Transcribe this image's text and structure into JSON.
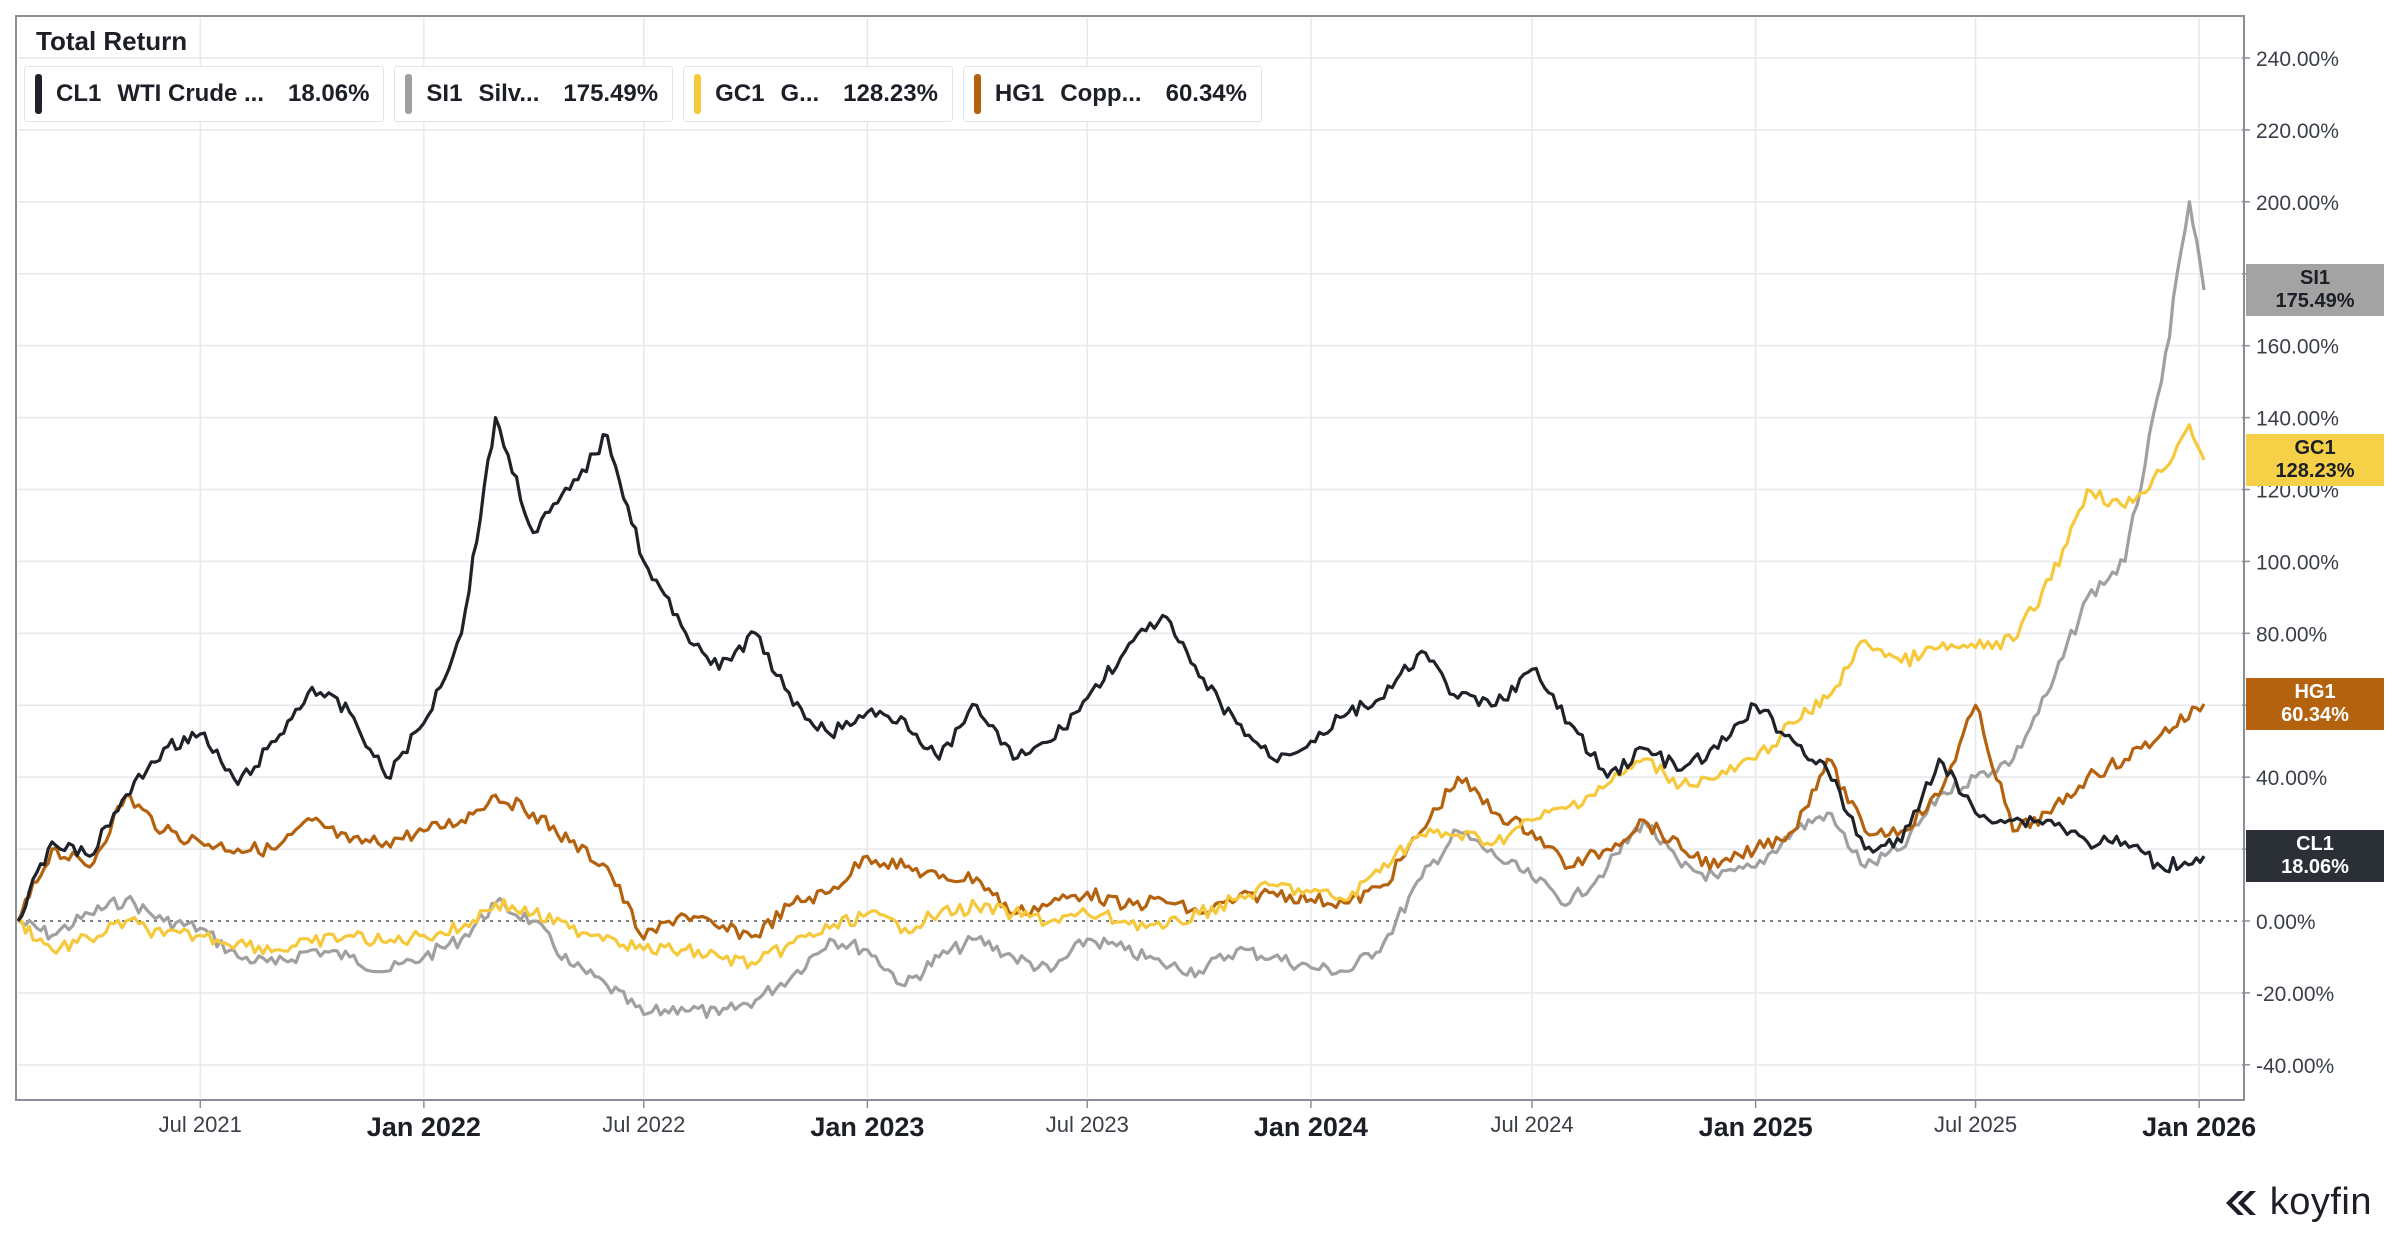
{
  "chart_data": {
    "type": "line",
    "title": "Total Return",
    "x_range": [
      "2021-02-01",
      "2026-01-05"
    ],
    "ylim": [
      -50,
      250
    ],
    "y_ticks": [
      -40,
      -20,
      0,
      20,
      40,
      60,
      80,
      100,
      120,
      140,
      160,
      180,
      200,
      220,
      240
    ],
    "y_tick_labels": [
      "-40.00%",
      "-20.00%",
      "0.00%",
      "20.00%",
      "40.00%",
      "60.00%",
      "80.00%",
      "100.00%",
      "120.00%",
      "140.00%",
      "160.00%",
      "180.00%",
      "200.00%",
      "220.00%",
      "240.00%"
    ],
    "x_ticks": [
      {
        "date": "2021-07-01",
        "label": "Jul 2021",
        "major": false
      },
      {
        "date": "2022-01-01",
        "label": "Jan 2022",
        "major": true
      },
      {
        "date": "2022-07-01",
        "label": "Jul 2022",
        "major": false
      },
      {
        "date": "2023-01-01",
        "label": "Jan 2023",
        "major": true
      },
      {
        "date": "2023-07-01",
        "label": "Jul 2023",
        "major": false
      },
      {
        "date": "2024-01-01",
        "label": "Jan 2024",
        "major": true
      },
      {
        "date": "2024-07-01",
        "label": "Jul 2024",
        "major": false
      },
      {
        "date": "2025-01-01",
        "label": "Jan 2025",
        "major": true
      },
      {
        "date": "2025-07-01",
        "label": "Jul 2025",
        "major": false
      },
      {
        "date": "2026-01-01",
        "label": "Jan 2026",
        "major": true
      }
    ],
    "grid": true,
    "legend_position": "top-left",
    "zero_line": "dotted",
    "series": [
      {
        "ticker": "CL1",
        "name": "WTI Crude ...",
        "last_value": "18.06%",
        "color": "#1f2329",
        "points": [
          [
            "2021-02-01",
            0
          ],
          [
            "2021-03-01",
            22
          ],
          [
            "2021-04-01",
            18
          ],
          [
            "2021-05-01",
            35
          ],
          [
            "2021-06-01",
            48
          ],
          [
            "2021-07-01",
            52
          ],
          [
            "2021-08-01",
            38
          ],
          [
            "2021-09-01",
            50
          ],
          [
            "2021-10-01",
            65
          ],
          [
            "2021-11-01",
            58
          ],
          [
            "2021-12-01",
            40
          ],
          [
            "2022-01-01",
            55
          ],
          [
            "2022-02-01",
            80
          ],
          [
            "2022-03-01",
            140
          ],
          [
            "2022-04-01",
            108
          ],
          [
            "2022-05-01",
            120
          ],
          [
            "2022-06-01",
            135
          ],
          [
            "2022-07-01",
            100
          ],
          [
            "2022-08-01",
            82
          ],
          [
            "2022-09-01",
            70
          ],
          [
            "2022-10-01",
            80
          ],
          [
            "2022-11-01",
            60
          ],
          [
            "2022-12-01",
            52
          ],
          [
            "2023-01-01",
            58
          ],
          [
            "2023-02-01",
            56
          ],
          [
            "2023-03-01",
            45
          ],
          [
            "2023-04-01",
            60
          ],
          [
            "2023-05-01",
            45
          ],
          [
            "2023-06-01",
            50
          ],
          [
            "2023-07-01",
            62
          ],
          [
            "2023-08-01",
            75
          ],
          [
            "2023-09-01",
            85
          ],
          [
            "2023-10-01",
            68
          ],
          [
            "2023-11-01",
            55
          ],
          [
            "2023-12-01",
            45
          ],
          [
            "2024-01-01",
            50
          ],
          [
            "2024-02-01",
            58
          ],
          [
            "2024-03-01",
            62
          ],
          [
            "2024-04-01",
            75
          ],
          [
            "2024-05-01",
            62
          ],
          [
            "2024-06-01",
            60
          ],
          [
            "2024-07-01",
            70
          ],
          [
            "2024-08-01",
            55
          ],
          [
            "2024-09-01",
            40
          ],
          [
            "2024-10-01",
            48
          ],
          [
            "2024-11-01",
            42
          ],
          [
            "2024-12-01",
            48
          ],
          [
            "2025-01-01",
            60
          ],
          [
            "2025-02-01",
            50
          ],
          [
            "2025-03-01",
            42
          ],
          [
            "2025-04-01",
            20
          ],
          [
            "2025-05-01",
            22
          ],
          [
            "2025-06-01",
            45
          ],
          [
            "2025-07-01",
            30
          ],
          [
            "2025-08-01",
            28
          ],
          [
            "2025-09-01",
            28
          ],
          [
            "2025-10-01",
            22
          ],
          [
            "2025-11-01",
            22
          ],
          [
            "2025-12-01",
            15
          ],
          [
            "2026-01-05",
            18.06
          ]
        ]
      },
      {
        "ticker": "SI1",
        "name": "Silv...",
        "last_value": "175.49%",
        "color": "#a0a0a0",
        "points": [
          [
            "2021-02-01",
            0
          ],
          [
            "2021-03-01",
            -4
          ],
          [
            "2021-04-01",
            2
          ],
          [
            "2021-05-01",
            6
          ],
          [
            "2021-06-01",
            0
          ],
          [
            "2021-07-01",
            -2
          ],
          [
            "2021-08-01",
            -10
          ],
          [
            "2021-09-01",
            -12
          ],
          [
            "2021-10-01",
            -8
          ],
          [
            "2021-11-01",
            -10
          ],
          [
            "2021-12-01",
            -14
          ],
          [
            "2022-01-01",
            -10
          ],
          [
            "2022-02-01",
            -5
          ],
          [
            "2022-03-01",
            5
          ],
          [
            "2022-04-01",
            0
          ],
          [
            "2022-05-01",
            -12
          ],
          [
            "2022-06-01",
            -18
          ],
          [
            "2022-07-01",
            -26
          ],
          [
            "2022-08-01",
            -24
          ],
          [
            "2022-09-01",
            -26
          ],
          [
            "2022-10-01",
            -22
          ],
          [
            "2022-11-01",
            -15
          ],
          [
            "2022-12-01",
            -5
          ],
          [
            "2023-01-01",
            -8
          ],
          [
            "2023-02-01",
            -18
          ],
          [
            "2023-03-01",
            -10
          ],
          [
            "2023-04-01",
            -5
          ],
          [
            "2023-05-01",
            -10
          ],
          [
            "2023-06-01",
            -14
          ],
          [
            "2023-07-01",
            -5
          ],
          [
            "2023-08-01",
            -8
          ],
          [
            "2023-09-01",
            -12
          ],
          [
            "2023-10-01",
            -14
          ],
          [
            "2023-11-01",
            -8
          ],
          [
            "2023-12-01",
            -10
          ],
          [
            "2024-01-01",
            -13
          ],
          [
            "2024-02-01",
            -14
          ],
          [
            "2024-03-01",
            -6
          ],
          [
            "2024-04-01",
            12
          ],
          [
            "2024-05-01",
            25
          ],
          [
            "2024-06-01",
            18
          ],
          [
            "2024-07-01",
            12
          ],
          [
            "2024-08-01",
            5
          ],
          [
            "2024-09-01",
            15
          ],
          [
            "2024-10-01",
            28
          ],
          [
            "2024-11-01",
            15
          ],
          [
            "2024-12-01",
            12
          ],
          [
            "2025-01-01",
            15
          ],
          [
            "2025-02-01",
            25
          ],
          [
            "2025-03-01",
            30
          ],
          [
            "2025-04-01",
            15
          ],
          [
            "2025-05-01",
            20
          ],
          [
            "2025-06-01",
            35
          ],
          [
            "2025-07-01",
            40
          ],
          [
            "2025-08-01",
            45
          ],
          [
            "2025-09-01",
            65
          ],
          [
            "2025-10-01",
            90
          ],
          [
            "2025-11-01",
            100
          ],
          [
            "2025-12-01",
            150
          ],
          [
            "2025-12-24",
            200
          ],
          [
            "2026-01-05",
            175.49
          ]
        ]
      },
      {
        "ticker": "GC1",
        "name": "G...",
        "last_value": "128.23%",
        "color": "#f6c93c",
        "points": [
          [
            "2021-02-01",
            0
          ],
          [
            "2021-03-01",
            -8
          ],
          [
            "2021-04-01",
            -5
          ],
          [
            "2021-05-01",
            0
          ],
          [
            "2021-06-01",
            -4
          ],
          [
            "2021-07-01",
            -4
          ],
          [
            "2021-08-01",
            -6
          ],
          [
            "2021-09-01",
            -8
          ],
          [
            "2021-10-01",
            -6
          ],
          [
            "2021-11-01",
            -4
          ],
          [
            "2021-12-01",
            -6
          ],
          [
            "2022-01-01",
            -4
          ],
          [
            "2022-02-01",
            -2
          ],
          [
            "2022-03-01",
            5
          ],
          [
            "2022-04-01",
            2
          ],
          [
            "2022-05-01",
            -2
          ],
          [
            "2022-06-01",
            -4
          ],
          [
            "2022-07-01",
            -8
          ],
          [
            "2022-08-01",
            -8
          ],
          [
            "2022-09-01",
            -10
          ],
          [
            "2022-10-01",
            -12
          ],
          [
            "2022-11-01",
            -6
          ],
          [
            "2022-12-01",
            -2
          ],
          [
            "2023-01-01",
            2
          ],
          [
            "2023-02-01",
            -2
          ],
          [
            "2023-03-01",
            2
          ],
          [
            "2023-04-01",
            4
          ],
          [
            "2023-05-01",
            2
          ],
          [
            "2023-06-01",
            0
          ],
          [
            "2023-07-01",
            2
          ],
          [
            "2023-08-01",
            0
          ],
          [
            "2023-09-01",
            -2
          ],
          [
            "2023-10-01",
            2
          ],
          [
            "2023-11-01",
            6
          ],
          [
            "2023-12-01",
            10
          ],
          [
            "2024-01-01",
            8
          ],
          [
            "2024-02-01",
            6
          ],
          [
            "2024-03-01",
            16
          ],
          [
            "2024-04-01",
            24
          ],
          [
            "2024-05-01",
            24
          ],
          [
            "2024-06-01",
            22
          ],
          [
            "2024-07-01",
            28
          ],
          [
            "2024-08-01",
            32
          ],
          [
            "2024-09-01",
            38
          ],
          [
            "2024-10-01",
            45
          ],
          [
            "2024-11-01",
            38
          ],
          [
            "2024-12-01",
            40
          ],
          [
            "2025-01-01",
            45
          ],
          [
            "2025-02-01",
            55
          ],
          [
            "2025-03-01",
            62
          ],
          [
            "2025-04-01",
            78
          ],
          [
            "2025-05-01",
            72
          ],
          [
            "2025-06-01",
            76
          ],
          [
            "2025-07-01",
            76
          ],
          [
            "2025-08-01",
            78
          ],
          [
            "2025-09-01",
            95
          ],
          [
            "2025-10-01",
            120
          ],
          [
            "2025-11-01",
            115
          ],
          [
            "2025-12-01",
            125
          ],
          [
            "2025-12-24",
            138
          ],
          [
            "2026-01-05",
            128.23
          ]
        ]
      },
      {
        "ticker": "HG1",
        "name": "Copp...",
        "last_value": "60.34%",
        "color": "#b5620f",
        "points": [
          [
            "2021-02-01",
            0
          ],
          [
            "2021-03-01",
            20
          ],
          [
            "2021-04-01",
            15
          ],
          [
            "2021-05-01",
            35
          ],
          [
            "2021-06-01",
            25
          ],
          [
            "2021-07-01",
            22
          ],
          [
            "2021-08-01",
            20
          ],
          [
            "2021-09-01",
            20
          ],
          [
            "2021-10-01",
            28
          ],
          [
            "2021-11-01",
            22
          ],
          [
            "2021-12-01",
            22
          ],
          [
            "2022-01-01",
            25
          ],
          [
            "2022-02-01",
            28
          ],
          [
            "2022-03-01",
            35
          ],
          [
            "2022-04-01",
            30
          ],
          [
            "2022-05-01",
            22
          ],
          [
            "2022-06-01",
            15
          ],
          [
            "2022-07-01",
            -5
          ],
          [
            "2022-08-01",
            2
          ],
          [
            "2022-09-01",
            -2
          ],
          [
            "2022-10-01",
            -4
          ],
          [
            "2022-11-01",
            5
          ],
          [
            "2022-12-01",
            8
          ],
          [
            "2023-01-01",
            18
          ],
          [
            "2023-02-01",
            15
          ],
          [
            "2023-03-01",
            12
          ],
          [
            "2023-04-01",
            12
          ],
          [
            "2023-05-01",
            2
          ],
          [
            "2023-06-01",
            5
          ],
          [
            "2023-07-01",
            8
          ],
          [
            "2023-08-01",
            4
          ],
          [
            "2023-09-01",
            6
          ],
          [
            "2023-10-01",
            2
          ],
          [
            "2023-11-01",
            6
          ],
          [
            "2023-12-01",
            8
          ],
          [
            "2024-01-01",
            6
          ],
          [
            "2024-02-01",
            5
          ],
          [
            "2024-03-01",
            10
          ],
          [
            "2024-04-01",
            25
          ],
          [
            "2024-05-01",
            40
          ],
          [
            "2024-06-01",
            30
          ],
          [
            "2024-07-01",
            25
          ],
          [
            "2024-08-01",
            15
          ],
          [
            "2024-09-01",
            20
          ],
          [
            "2024-10-01",
            28
          ],
          [
            "2024-11-01",
            20
          ],
          [
            "2024-12-01",
            15
          ],
          [
            "2025-01-01",
            20
          ],
          [
            "2025-02-01",
            25
          ],
          [
            "2025-03-01",
            45
          ],
          [
            "2025-04-01",
            25
          ],
          [
            "2025-05-01",
            25
          ],
          [
            "2025-06-01",
            35
          ],
          [
            "2025-07-01",
            60
          ],
          [
            "2025-08-01",
            25
          ],
          [
            "2025-09-01",
            30
          ],
          [
            "2025-10-01",
            40
          ],
          [
            "2025-11-01",
            45
          ],
          [
            "2025-12-01",
            52
          ],
          [
            "2026-01-05",
            60.34
          ]
        ]
      }
    ]
  },
  "logo_text": "koyfin"
}
